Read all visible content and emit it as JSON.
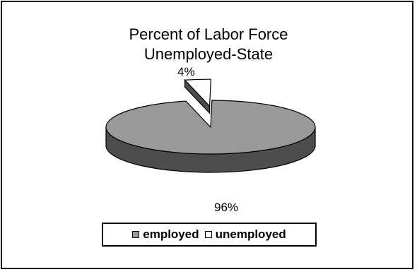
{
  "chart_data": {
    "type": "pie",
    "title_lines": [
      "Percent of Labor Force",
      "Unemployed-State"
    ],
    "slices": [
      {
        "label": "employed",
        "value": 96,
        "value_label": "96%",
        "color": "#999999",
        "side_color": "#4d4d4d"
      },
      {
        "label": "unemployed",
        "value": 4,
        "value_label": "4%",
        "color": "#ffffff",
        "side_color": "#ffffff"
      }
    ],
    "three_d": true,
    "exploded_slice": "unemployed",
    "legend_position": "bottom"
  }
}
